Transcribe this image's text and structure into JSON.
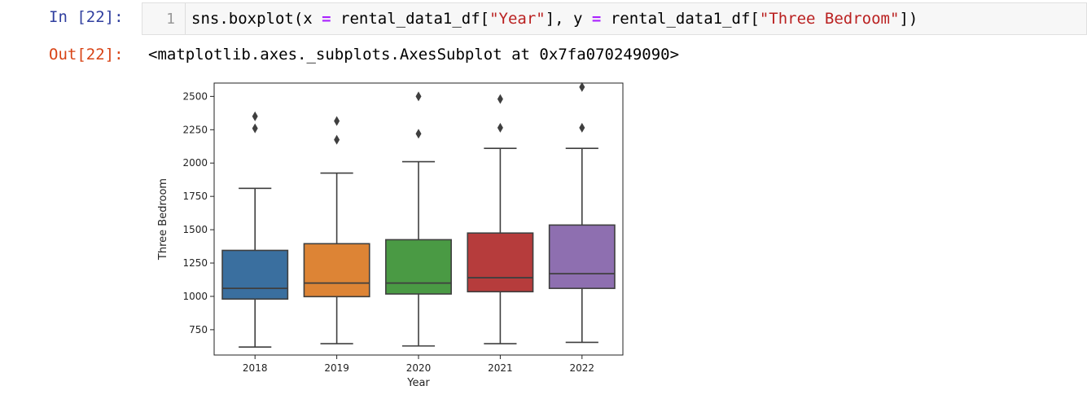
{
  "input_cell": {
    "prompt": "In [22]:",
    "line_number": "1",
    "code_tokens": [
      {
        "text": "sns.boxplot(x ",
        "cls": ""
      },
      {
        "text": "=",
        "cls": "op"
      },
      {
        "text": " rental_data1_df[",
        "cls": ""
      },
      {
        "text": "\"Year\"",
        "cls": "str"
      },
      {
        "text": "], y ",
        "cls": ""
      },
      {
        "text": "=",
        "cls": "op"
      },
      {
        "text": " rental_data1_df[",
        "cls": ""
      },
      {
        "text": "\"Three Bedroom\"",
        "cls": "str"
      },
      {
        "text": "])",
        "cls": ""
      }
    ]
  },
  "output_cell": {
    "prompt": "Out[22]:",
    "text": "<matplotlib.axes._subplots.AxesSubplot at 0x7fa070249090>"
  },
  "chart_data": {
    "type": "box",
    "xlabel": "Year",
    "ylabel": "Three Bedroom",
    "ylim": [
      560,
      2600
    ],
    "yticks": [
      750,
      1000,
      1250,
      1500,
      1750,
      2000,
      2250,
      2500
    ],
    "categories": [
      "2018",
      "2019",
      "2020",
      "2021",
      "2022"
    ],
    "boxes": [
      {
        "category": "2018",
        "color": "#3a6f9f",
        "whisker_low": 620,
        "q1": 980,
        "median": 1060,
        "q3": 1345,
        "whisker_high": 1810,
        "outliers": [
          2260,
          2350
        ]
      },
      {
        "category": "2019",
        "color": "#dd8435",
        "whisker_low": 645,
        "q1": 998,
        "median": 1100,
        "q3": 1395,
        "whisker_high": 1925,
        "outliers": [
          2175,
          2315
        ]
      },
      {
        "category": "2020",
        "color": "#4a9a44",
        "whisker_low": 628,
        "q1": 1018,
        "median": 1100,
        "q3": 1425,
        "whisker_high": 2010,
        "outliers": [
          2220,
          2500
        ]
      },
      {
        "category": "2021",
        "color": "#b63c3c",
        "whisker_low": 645,
        "q1": 1035,
        "median": 1140,
        "q3": 1475,
        "whisker_high": 2110,
        "outliers": [
          2265,
          2480
        ]
      },
      {
        "category": "2022",
        "color": "#8e6fb0",
        "whisker_low": 655,
        "q1": 1060,
        "median": 1170,
        "q3": 1535,
        "whisker_high": 2110,
        "outliers": [
          2265,
          2570
        ]
      }
    ],
    "grid": false,
    "legend": "none"
  }
}
